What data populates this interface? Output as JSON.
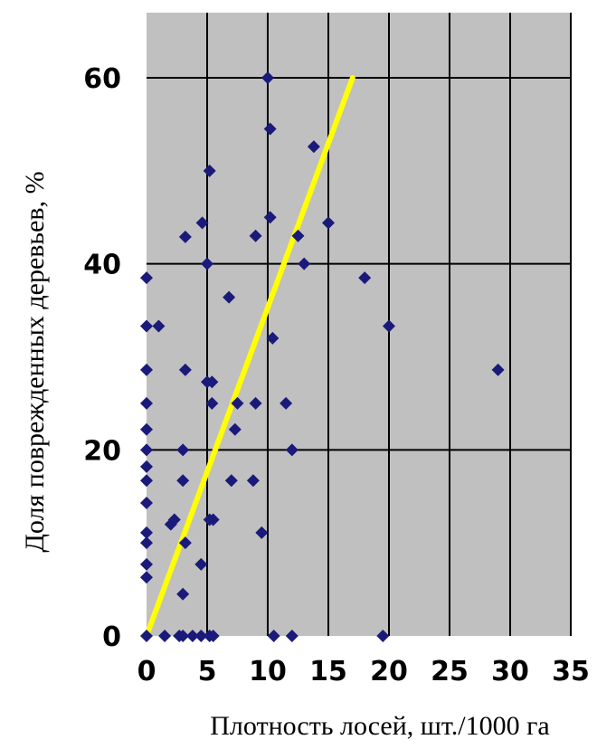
{
  "chart_data": {
    "type": "scatter",
    "xlabel": "Плотность лосей, шт./1000 га",
    "ylabel": "Доля поврежденных деревьев, %",
    "xlim": [
      0,
      35
    ],
    "ylim": [
      0,
      67
    ],
    "xticks": [
      0,
      5,
      10,
      15,
      20,
      25,
      30,
      35
    ],
    "yticks": [
      0,
      20,
      40,
      60
    ],
    "grid": true,
    "plot_background": "#c0c0c0",
    "marker_color": "#1a1a7a",
    "trend_color": "#ffff00",
    "series": [
      {
        "points": [
          [
            0,
            38.5
          ],
          [
            0,
            33.3
          ],
          [
            0,
            28.6
          ],
          [
            0,
            25
          ],
          [
            0,
            22.2
          ],
          [
            0,
            20
          ],
          [
            0,
            18.2
          ],
          [
            0,
            16.7
          ],
          [
            0,
            14.3
          ],
          [
            0,
            11.1
          ],
          [
            0,
            10
          ],
          [
            0,
            7.7
          ],
          [
            0,
            6.3
          ],
          [
            0,
            0
          ],
          [
            1,
            33.3
          ],
          [
            1.5,
            0
          ],
          [
            2,
            12
          ],
          [
            2.3,
            12.5
          ],
          [
            2.7,
            0
          ],
          [
            3,
            0
          ],
          [
            3,
            20
          ],
          [
            3,
            16.7
          ],
          [
            3,
            4.5
          ],
          [
            3.2,
            10
          ],
          [
            3.2,
            28.6
          ],
          [
            3.2,
            42.9
          ],
          [
            3.8,
            0
          ],
          [
            4.5,
            0
          ],
          [
            4.5,
            7.7
          ],
          [
            4.6,
            44.4
          ],
          [
            5,
            27.3
          ],
          [
            5,
            40
          ],
          [
            5.2,
            50
          ],
          [
            5.2,
            0
          ],
          [
            5.4,
            27.3
          ],
          [
            5.4,
            25
          ],
          [
            5.2,
            12.5
          ],
          [
            5.5,
            12.5
          ],
          [
            5.5,
            0
          ],
          [
            6.8,
            36.4
          ],
          [
            7,
            16.7
          ],
          [
            7.3,
            22.2
          ],
          [
            7.5,
            25
          ],
          [
            9,
            43
          ],
          [
            9,
            25
          ],
          [
            8.8,
            16.7
          ],
          [
            9.5,
            11.1
          ],
          [
            10,
            60
          ],
          [
            10.2,
            54.5
          ],
          [
            10.2,
            45
          ],
          [
            10.4,
            32
          ],
          [
            10.5,
            0
          ],
          [
            11.5,
            25
          ],
          [
            12,
            20
          ],
          [
            12,
            0
          ],
          [
            12.5,
            43
          ],
          [
            13,
            40
          ],
          [
            13.8,
            52.6
          ],
          [
            15,
            44.4
          ],
          [
            18,
            38.5
          ],
          [
            19.5,
            0
          ],
          [
            20,
            33.3
          ],
          [
            29,
            28.6
          ]
        ]
      }
    ],
    "trend_line": {
      "from": [
        0,
        0
      ],
      "to": [
        17,
        60
      ]
    }
  }
}
